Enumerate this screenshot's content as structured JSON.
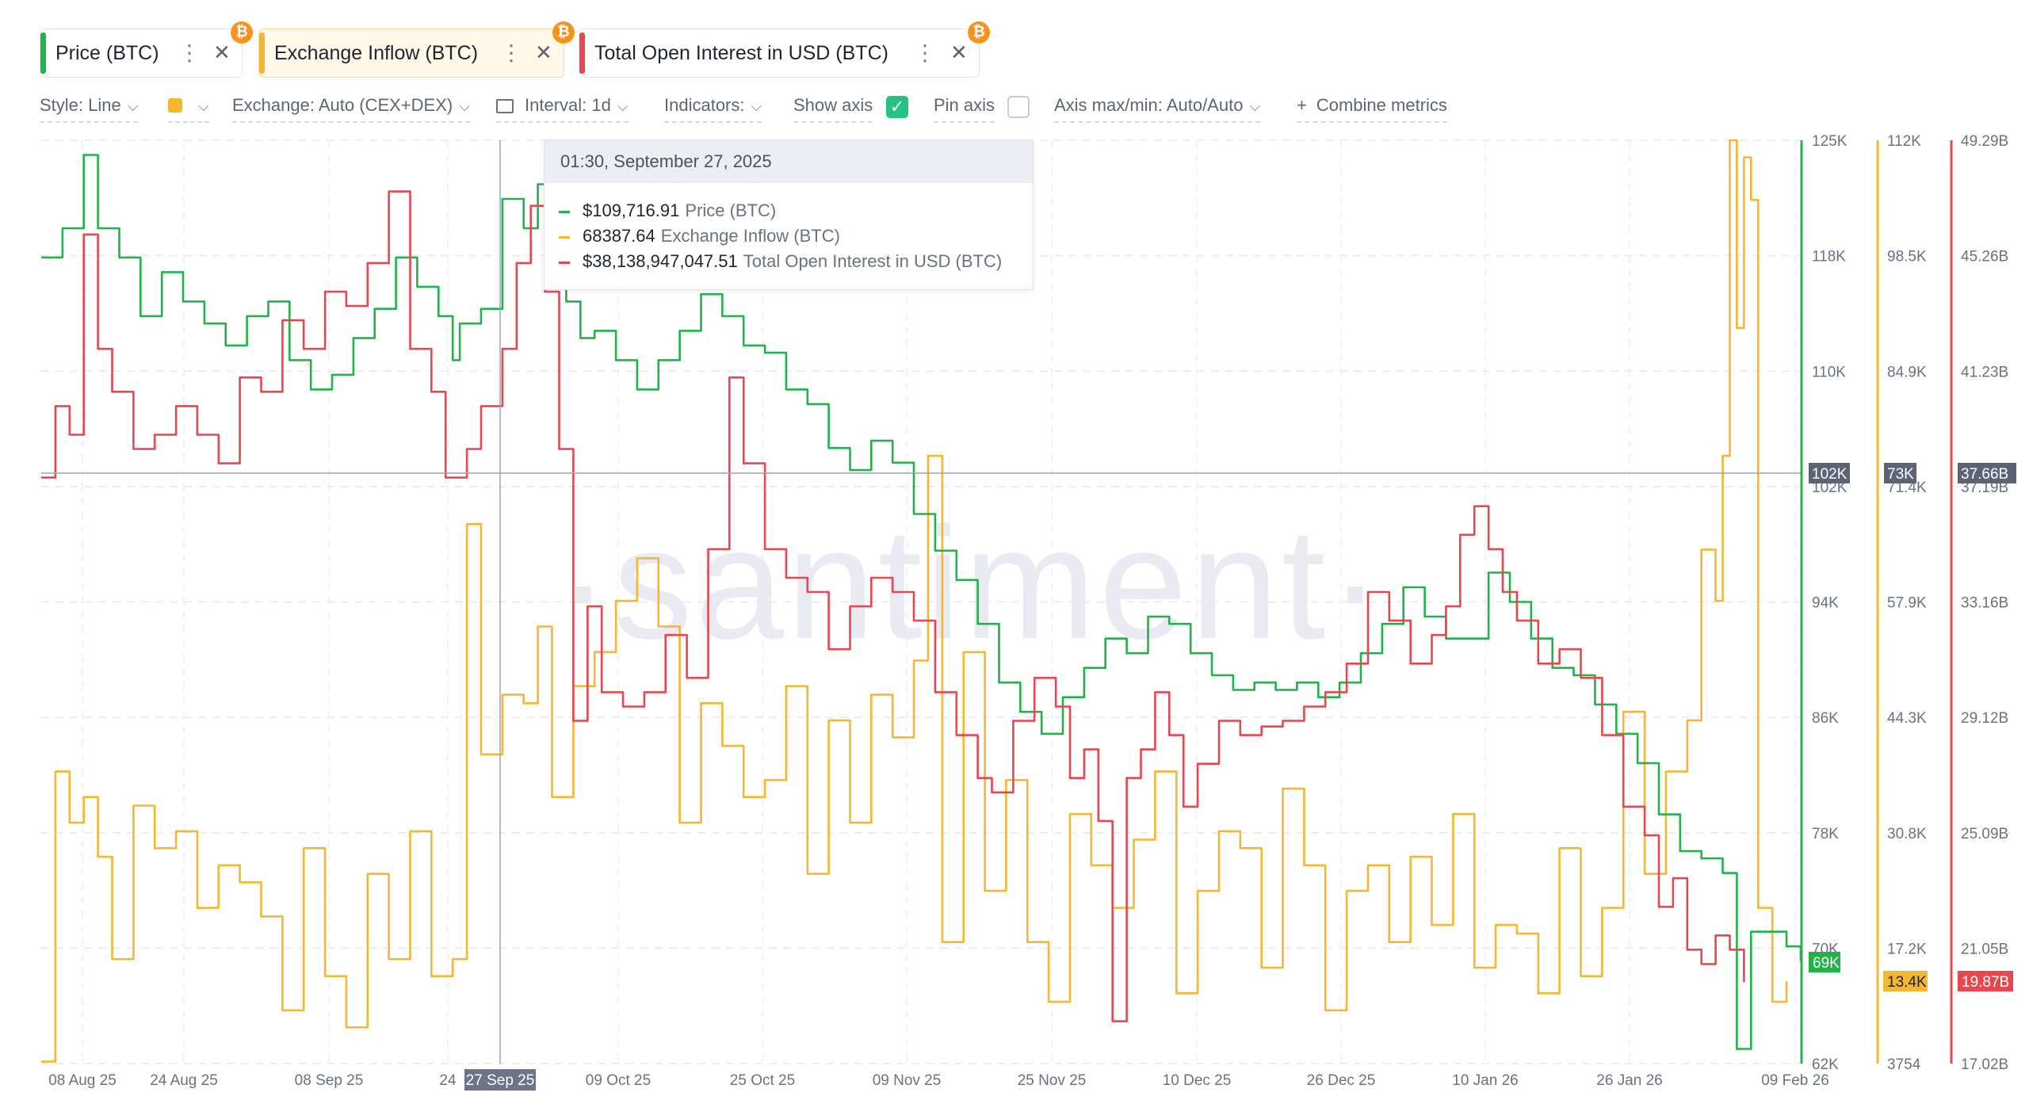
{
  "metrics": [
    {
      "label": "Price (BTC)",
      "color": "#21b34a"
    },
    {
      "label": "Exchange Inflow (BTC)",
      "color": "#f5b731"
    },
    {
      "label": "Total Open Interest in USD (BTC)",
      "color": "#e8474f"
    }
  ],
  "toolbar": {
    "style": "Style: Line",
    "exchange": "Exchange: Auto (CEX+DEX)",
    "interval": "Interval: 1d",
    "indicators": "Indicators:",
    "show_axis": "Show axis",
    "pin_axis": "Pin axis",
    "axis_maxmin": "Axis max/min: Auto/Auto",
    "combine": "Combine metrics"
  },
  "tooltip": {
    "date": "01:30, September 27, 2025",
    "rows": [
      {
        "value": "$109,716.91",
        "name": "Price (BTC)"
      },
      {
        "value": "68387.64",
        "name": "Exchange Inflow (BTC)"
      },
      {
        "value": "$38,138,947,047.51",
        "name": "Total Open Interest in USD (BTC)"
      }
    ]
  },
  "watermark": "·santiment·",
  "chart_data": {
    "type": "line",
    "x_ticks": [
      "08 Aug 25",
      "24 Aug 25",
      "08 Sep 25",
      "24",
      "27 Sep 25",
      "09 Oct 25",
      "25 Oct 25",
      "09 Nov 25",
      "25 Nov 25",
      "10 Dec 25",
      "26 Dec 25",
      "10 Jan 26",
      "26 Jan 26",
      "09 Feb 26"
    ],
    "crosshair_date": "27 Sep 25",
    "axes": {
      "price": {
        "ticks": [
          "125K",
          "118K",
          "110K",
          "102K",
          "94K",
          "86K",
          "78K",
          "70K",
          "62K"
        ],
        "range": [
          62000,
          125000
        ],
        "marker": "102K",
        "current": "69K",
        "color": "#21b34a"
      },
      "inflow": {
        "ticks": [
          "112K",
          "98.5K",
          "84.9K",
          "71.4K",
          "57.9K",
          "44.3K",
          "30.8K",
          "17.2K",
          "3754"
        ],
        "range": [
          3754,
          112000
        ],
        "marker": "73K",
        "current": "13.4K",
        "color": "#f5b731"
      },
      "oi": {
        "ticks": [
          "49.29B",
          "45.26B",
          "41.23B",
          "37.19B",
          "33.16B",
          "29.12B",
          "25.09B",
          "21.05B",
          "17.02B"
        ],
        "range": [
          17.02,
          49.29
        ],
        "marker": "37.66B",
        "current": "19.87B",
        "color": "#e8474f"
      }
    },
    "series": [
      {
        "name": "Price (BTC)",
        "axis": "price",
        "color": "#21b34a",
        "points": [
          [
            0,
            117000
          ],
          [
            3,
            119000
          ],
          [
            6,
            124000
          ],
          [
            8,
            119000
          ],
          [
            11,
            117000
          ],
          [
            14,
            113000
          ],
          [
            17,
            116000
          ],
          [
            20,
            114000
          ],
          [
            23,
            112500
          ],
          [
            26,
            111000
          ],
          [
            29,
            113000
          ],
          [
            32,
            114000
          ],
          [
            35,
            110000
          ],
          [
            38,
            108000
          ],
          [
            41,
            109000
          ],
          [
            44,
            111500
          ],
          [
            47,
            113500
          ],
          [
            50,
            117000
          ],
          [
            53,
            115000
          ],
          [
            56,
            113000
          ],
          [
            58,
            110000
          ],
          [
            59,
            112500
          ],
          [
            62,
            113500
          ],
          [
            65,
            121000
          ],
          [
            68,
            119000
          ],
          [
            70,
            122000
          ],
          [
            72,
            121000
          ],
          [
            74,
            114000
          ],
          [
            76,
            111500
          ],
          [
            78,
            112000
          ],
          [
            81,
            110000
          ],
          [
            84,
            108000
          ],
          [
            87,
            110000
          ],
          [
            90,
            112000
          ],
          [
            93,
            114500
          ],
          [
            96,
            113000
          ],
          [
            99,
            111000
          ],
          [
            102,
            110500
          ],
          [
            105,
            108000
          ],
          [
            108,
            107000
          ],
          [
            111,
            104000
          ],
          [
            114,
            102500
          ],
          [
            117,
            104500
          ],
          [
            120,
            103000
          ],
          [
            123,
            99500
          ],
          [
            126,
            97000
          ],
          [
            129,
            95000
          ],
          [
            132,
            92000
          ],
          [
            135,
            88000
          ],
          [
            138,
            86000
          ],
          [
            141,
            84500
          ],
          [
            144,
            87000
          ],
          [
            147,
            89000
          ],
          [
            150,
            91000
          ],
          [
            153,
            90000
          ],
          [
            156,
            92500
          ],
          [
            159,
            92000
          ],
          [
            162,
            90000
          ],
          [
            165,
            88500
          ],
          [
            168,
            87500
          ],
          [
            171,
            88000
          ],
          [
            174,
            87500
          ],
          [
            177,
            88000
          ],
          [
            180,
            87000
          ],
          [
            183,
            88000
          ],
          [
            186,
            90000
          ],
          [
            189,
            92000
          ],
          [
            192,
            94500
          ],
          [
            195,
            92500
          ],
          [
            198,
            91000
          ],
          [
            201,
            91000
          ],
          [
            204,
            95500
          ],
          [
            207,
            93500
          ],
          [
            210,
            91000
          ],
          [
            213,
            89000
          ],
          [
            216,
            88500
          ],
          [
            219,
            86500
          ],
          [
            222,
            84500
          ],
          [
            225,
            82500
          ],
          [
            228,
            79000
          ],
          [
            231,
            76500
          ],
          [
            234,
            76000
          ],
          [
            237,
            75000
          ],
          [
            239,
            63000
          ],
          [
            241,
            71000
          ],
          [
            244,
            71000
          ],
          [
            246,
            70000
          ],
          [
            248,
            69000
          ]
        ]
      },
      {
        "name": "Exchange Inflow (BTC)",
        "axis": "inflow",
        "color": "#f5b731",
        "points": [
          [
            0,
            4000
          ],
          [
            2,
            38000
          ],
          [
            4,
            32000
          ],
          [
            6,
            35000
          ],
          [
            8,
            28000
          ],
          [
            10,
            16000
          ],
          [
            13,
            34000
          ],
          [
            16,
            29000
          ],
          [
            19,
            31000
          ],
          [
            22,
            22000
          ],
          [
            25,
            27000
          ],
          [
            28,
            25000
          ],
          [
            31,
            21000
          ],
          [
            34,
            10000
          ],
          [
            37,
            29000
          ],
          [
            40,
            14000
          ],
          [
            43,
            8000
          ],
          [
            46,
            26000
          ],
          [
            49,
            16000
          ],
          [
            52,
            31000
          ],
          [
            55,
            14000
          ],
          [
            58,
            16000
          ],
          [
            60,
            67000
          ],
          [
            62,
            40000
          ],
          [
            65,
            47000
          ],
          [
            68,
            46000
          ],
          [
            70,
            55000
          ],
          [
            72,
            35000
          ],
          [
            75,
            48000
          ],
          [
            78,
            52000
          ],
          [
            81,
            58000
          ],
          [
            84,
            63000
          ],
          [
            87,
            55000
          ],
          [
            90,
            32000
          ],
          [
            93,
            46000
          ],
          [
            96,
            41000
          ],
          [
            99,
            35000
          ],
          [
            102,
            37000
          ],
          [
            105,
            48000
          ],
          [
            108,
            26000
          ],
          [
            111,
            44000
          ],
          [
            114,
            32000
          ],
          [
            117,
            47000
          ],
          [
            120,
            42000
          ],
          [
            123,
            51000
          ],
          [
            125,
            75000
          ],
          [
            127,
            18000
          ],
          [
            130,
            52000
          ],
          [
            133,
            24000
          ],
          [
            136,
            37000
          ],
          [
            139,
            18000
          ],
          [
            142,
            11000
          ],
          [
            145,
            33000
          ],
          [
            148,
            27000
          ],
          [
            151,
            22000
          ],
          [
            154,
            30000
          ],
          [
            157,
            38000
          ],
          [
            160,
            12000
          ],
          [
            163,
            24000
          ],
          [
            166,
            31000
          ],
          [
            169,
            29000
          ],
          [
            172,
            15000
          ],
          [
            175,
            36000
          ],
          [
            178,
            27000
          ],
          [
            181,
            10000
          ],
          [
            184,
            24000
          ],
          [
            187,
            27000
          ],
          [
            190,
            18000
          ],
          [
            193,
            28000
          ],
          [
            196,
            20000
          ],
          [
            199,
            33000
          ],
          [
            202,
            15000
          ],
          [
            205,
            20000
          ],
          [
            208,
            19000
          ],
          [
            211,
            12000
          ],
          [
            214,
            29000
          ],
          [
            217,
            14000
          ],
          [
            220,
            22000
          ],
          [
            223,
            45000
          ],
          [
            226,
            26000
          ],
          [
            229,
            38000
          ],
          [
            232,
            44000
          ],
          [
            234,
            64000
          ],
          [
            236,
            58000
          ],
          [
            237,
            75000
          ],
          [
            238,
            112000
          ],
          [
            239,
            90000
          ],
          [
            240,
            110000
          ],
          [
            241,
            105000
          ],
          [
            242,
            22000
          ],
          [
            244,
            11000
          ],
          [
            246,
            13400
          ]
        ]
      },
      {
        "name": "Total Open Interest in USD (BTC)",
        "axis": "oi",
        "color": "#e8474f",
        "points": [
          [
            0,
            37.5
          ],
          [
            2,
            40.0
          ],
          [
            4,
            39.0
          ],
          [
            6,
            46.0
          ],
          [
            8,
            42.0
          ],
          [
            10,
            40.5
          ],
          [
            13,
            38.5
          ],
          [
            16,
            39.0
          ],
          [
            19,
            40.0
          ],
          [
            22,
            39.0
          ],
          [
            25,
            38.0
          ],
          [
            28,
            41.0
          ],
          [
            31,
            40.5
          ],
          [
            34,
            43.0
          ],
          [
            37,
            42.0
          ],
          [
            40,
            44.0
          ],
          [
            43,
            43.5
          ],
          [
            46,
            45.0
          ],
          [
            49,
            47.5
          ],
          [
            52,
            42.0
          ],
          [
            55,
            40.5
          ],
          [
            57,
            37.5
          ],
          [
            60,
            38.5
          ],
          [
            62,
            40.0
          ],
          [
            65,
            42.0
          ],
          [
            67,
            45.0
          ],
          [
            69,
            47.0
          ],
          [
            71,
            44.0
          ],
          [
            73,
            38.5
          ],
          [
            75,
            29.0
          ],
          [
            77,
            33.0
          ],
          [
            79,
            30.0
          ],
          [
            82,
            29.5
          ],
          [
            85,
            30.0
          ],
          [
            88,
            32.0
          ],
          [
            91,
            30.5
          ],
          [
            94,
            35.0
          ],
          [
            97,
            41.0
          ],
          [
            99,
            38.0
          ],
          [
            102,
            35.0
          ],
          [
            105,
            34.0
          ],
          [
            108,
            33.5
          ],
          [
            111,
            31.5
          ],
          [
            114,
            33.0
          ],
          [
            117,
            34.0
          ],
          [
            120,
            33.5
          ],
          [
            123,
            32.5
          ],
          [
            126,
            30.0
          ],
          [
            129,
            28.5
          ],
          [
            132,
            27.0
          ],
          [
            134,
            26.5
          ],
          [
            137,
            29.0
          ],
          [
            140,
            30.5
          ],
          [
            143,
            29.5
          ],
          [
            145,
            27.0
          ],
          [
            147,
            28.0
          ],
          [
            149,
            25.5
          ],
          [
            151,
            18.5
          ],
          [
            153,
            27.0
          ],
          [
            155,
            28.0
          ],
          [
            157,
            30.0
          ],
          [
            159,
            28.5
          ],
          [
            161,
            26.0
          ],
          [
            163,
            27.5
          ],
          [
            166,
            29.0
          ],
          [
            169,
            28.5
          ],
          [
            172,
            28.8
          ],
          [
            175,
            29.0
          ],
          [
            178,
            29.5
          ],
          [
            181,
            30.0
          ],
          [
            184,
            31.0
          ],
          [
            187,
            33.5
          ],
          [
            190,
            32.5
          ],
          [
            193,
            31.0
          ],
          [
            196,
            32.0
          ],
          [
            198,
            33.0
          ],
          [
            200,
            35.5
          ],
          [
            202,
            36.5
          ],
          [
            204,
            35.0
          ],
          [
            206,
            33.5
          ],
          [
            208,
            32.5
          ],
          [
            211,
            31.0
          ],
          [
            214,
            31.5
          ],
          [
            217,
            30.5
          ],
          [
            220,
            28.5
          ],
          [
            223,
            26.0
          ],
          [
            226,
            25.0
          ],
          [
            228,
            22.5
          ],
          [
            230,
            23.5
          ],
          [
            232,
            21.0
          ],
          [
            234,
            20.5
          ],
          [
            236,
            21.5
          ],
          [
            238,
            21.0
          ],
          [
            240,
            19.87
          ]
        ]
      }
    ]
  }
}
